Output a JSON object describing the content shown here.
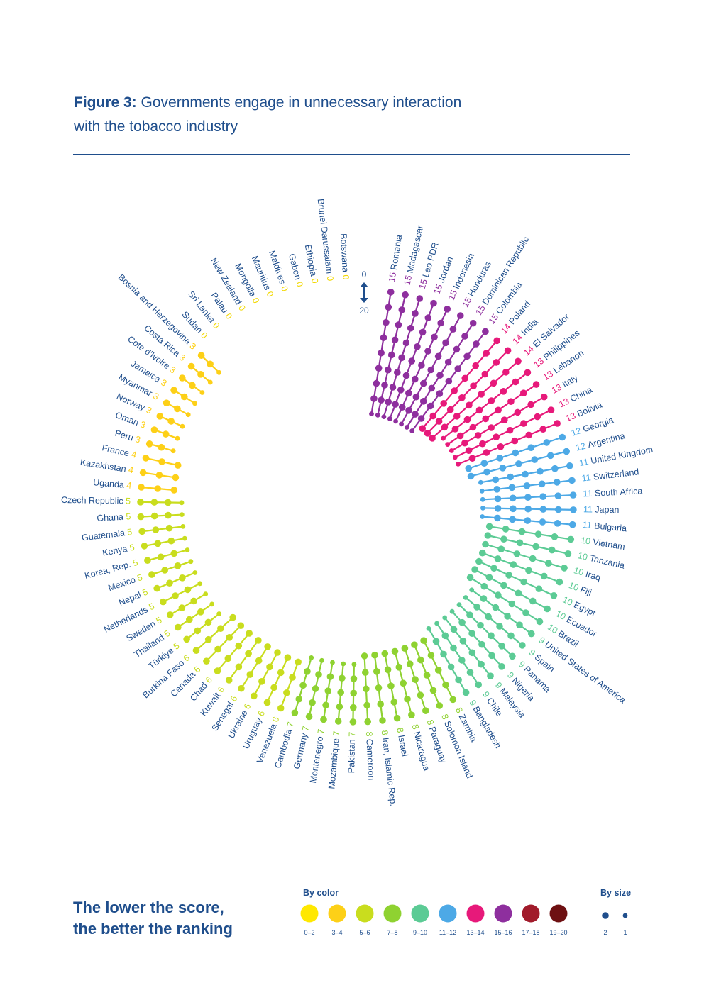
{
  "title": {
    "bold": "Figure 3:",
    "line1": " Governments engage in unnecessary interaction",
    "line2": "with the tobacco industry"
  },
  "chart_data": {
    "type": "radial-lollipop",
    "scale_indicator": {
      "min_label": "0",
      "max_label": "20"
    },
    "countries": [
      {
        "name": "Romania",
        "score": 15
      },
      {
        "name": "Madagascar",
        "score": 15
      },
      {
        "name": "Lao PDR",
        "score": 15
      },
      {
        "name": "Jordan",
        "score": 15
      },
      {
        "name": "Indonesia",
        "score": 15
      },
      {
        "name": "Honduras",
        "score": 15
      },
      {
        "name": "Dominican Republic",
        "score": 15
      },
      {
        "name": "Colombia",
        "score": 15
      },
      {
        "name": "Poland",
        "score": 14
      },
      {
        "name": "India",
        "score": 14
      },
      {
        "name": "El Salvador",
        "score": 14
      },
      {
        "name": "Philippines",
        "score": 13
      },
      {
        "name": "Lebanon",
        "score": 13
      },
      {
        "name": "Italy",
        "score": 13
      },
      {
        "name": "China",
        "score": 13
      },
      {
        "name": "Bolivia",
        "score": 13
      },
      {
        "name": "Georgia",
        "score": 12
      },
      {
        "name": "Argentina",
        "score": 12
      },
      {
        "name": "United Kingdom",
        "score": 11
      },
      {
        "name": "Switzerland",
        "score": 11
      },
      {
        "name": "South Africa",
        "score": 11
      },
      {
        "name": "Japan",
        "score": 11
      },
      {
        "name": "Bulgaria",
        "score": 11
      },
      {
        "name": "Vietnam",
        "score": 10
      },
      {
        "name": "Tanzania",
        "score": 10
      },
      {
        "name": "Iraq",
        "score": 10
      },
      {
        "name": "Fiji",
        "score": 10
      },
      {
        "name": "Egypt",
        "score": 10
      },
      {
        "name": "Ecuador",
        "score": 10
      },
      {
        "name": "Brazil",
        "score": 10
      },
      {
        "name": "United States of America",
        "score": 9
      },
      {
        "name": "Spain",
        "score": 9
      },
      {
        "name": "Panama",
        "score": 9
      },
      {
        "name": "Nigeria",
        "score": 9
      },
      {
        "name": "Malaysia",
        "score": 9
      },
      {
        "name": "Chile",
        "score": 9
      },
      {
        "name": "Bangladesh",
        "score": 9
      },
      {
        "name": "Zambia",
        "score": 8
      },
      {
        "name": "Solomon Island",
        "score": 8
      },
      {
        "name": "Paraguay",
        "score": 8
      },
      {
        "name": "Nicaragua",
        "score": 8
      },
      {
        "name": "Israel",
        "score": 8
      },
      {
        "name": "Iran, Islamic Rep.",
        "score": 8
      },
      {
        "name": "Cameroon",
        "score": 8
      },
      {
        "name": "Pakistan",
        "score": 7
      },
      {
        "name": "Mozambique",
        "score": 7
      },
      {
        "name": "Montenegro",
        "score": 7
      },
      {
        "name": "Germany",
        "score": 7
      },
      {
        "name": "Cambodia",
        "score": 7
      },
      {
        "name": "Venezuela",
        "score": 6
      },
      {
        "name": "Uruguay",
        "score": 6
      },
      {
        "name": "Ukraine",
        "score": 6
      },
      {
        "name": "Senegal",
        "score": 6
      },
      {
        "name": "Kuwait",
        "score": 6
      },
      {
        "name": "Chad",
        "score": 6
      },
      {
        "name": "Canada",
        "score": 6
      },
      {
        "name": "Burkina Faso",
        "score": 6
      },
      {
        "name": "Türkiye",
        "score": 5
      },
      {
        "name": "Thailand",
        "score": 5
      },
      {
        "name": "Sweden",
        "score": 5
      },
      {
        "name": "Netherlands",
        "score": 5
      },
      {
        "name": "Nepal",
        "score": 5
      },
      {
        "name": "Mexico",
        "score": 5
      },
      {
        "name": "Korea, Rep.",
        "score": 5
      },
      {
        "name": "Kenya",
        "score": 5
      },
      {
        "name": "Guatemala",
        "score": 5
      },
      {
        "name": "Ghana",
        "score": 5
      },
      {
        "name": "Czech Republic",
        "score": 5
      },
      {
        "name": "Uganda",
        "score": 4
      },
      {
        "name": "Kazakhstan",
        "score": 4
      },
      {
        "name": "France",
        "score": 4
      },
      {
        "name": "Peru",
        "score": 3
      },
      {
        "name": "Oman",
        "score": 3
      },
      {
        "name": "Norway",
        "score": 3
      },
      {
        "name": "Myanmar",
        "score": 3
      },
      {
        "name": "Jamaica",
        "score": 3
      },
      {
        "name": "Cote d'Ivoire",
        "score": 3
      },
      {
        "name": "Costa Rica",
        "score": 3
      },
      {
        "name": "Bosnia and Herzegovina",
        "score": 3
      },
      {
        "name": "Sudan",
        "score": 0
      },
      {
        "name": "Sri Lanka",
        "score": 0
      },
      {
        "name": "Palau",
        "score": 0
      },
      {
        "name": "New Zealand",
        "score": 0
      },
      {
        "name": "Mongolia",
        "score": 0
      },
      {
        "name": "Mauritius",
        "score": 0
      },
      {
        "name": "Maldives",
        "score": 0
      },
      {
        "name": "Gabon",
        "score": 0
      },
      {
        "name": "Ethiopia",
        "score": 0
      },
      {
        "name": "Brunei Darussalam",
        "score": 0
      },
      {
        "name": "Botswana",
        "score": 0
      }
    ],
    "color_legend": {
      "title": "By color",
      "items": [
        {
          "label": "0–2",
          "color": "#FFE800"
        },
        {
          "label": "3–4",
          "color": "#FDD017"
        },
        {
          "label": "5–6",
          "color": "#C9DD1E"
        },
        {
          "label": "7–8",
          "color": "#8FD231"
        },
        {
          "label": "9–10",
          "color": "#5CCB95"
        },
        {
          "label": "11–12",
          "color": "#4DA9E6"
        },
        {
          "label": "13–14",
          "color": "#E7197A"
        },
        {
          "label": "15–16",
          "color": "#8E2F9E"
        },
        {
          "label": "17–18",
          "color": "#A11B2B"
        },
        {
          "label": "19–20",
          "color": "#6E1012"
        }
      ]
    },
    "size_legend": {
      "title": "By size",
      "items": [
        {
          "label": "2"
        },
        {
          "label": "1"
        }
      ]
    }
  },
  "tagline": {
    "line1": "The lower the score,",
    "line2": "the better the ranking"
  }
}
